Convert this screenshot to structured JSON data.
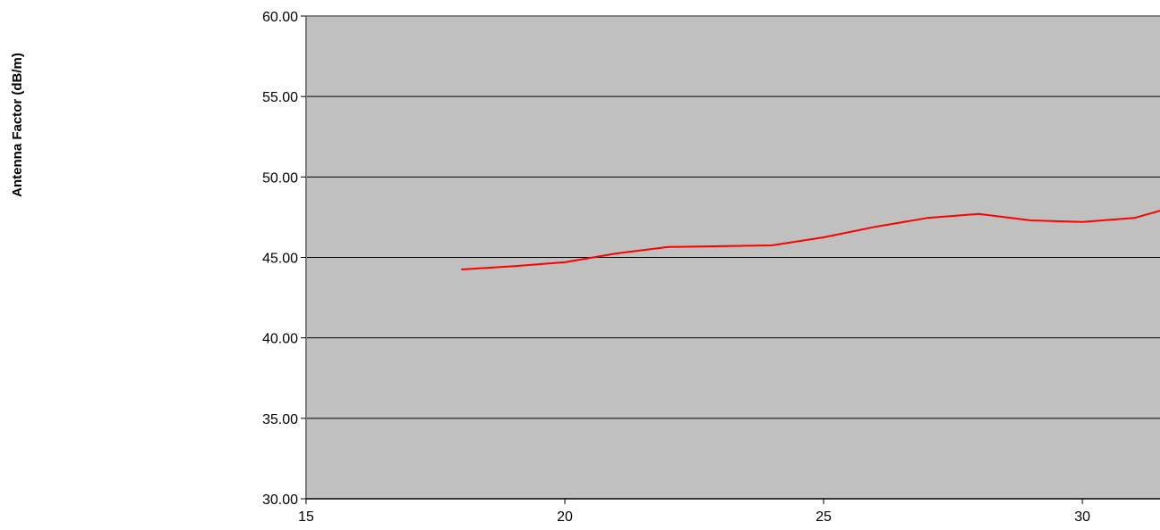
{
  "chart_data": {
    "type": "line",
    "title": "",
    "xlabel": "",
    "ylabel": "Antenna Factor (dB/m)",
    "xlim": [
      15,
      31.5
    ],
    "ylim": [
      30,
      60
    ],
    "x_ticks": [
      15,
      20,
      25,
      30
    ],
    "x_tick_labels": [
      "15",
      "20",
      "25",
      "30"
    ],
    "y_ticks": [
      30,
      35,
      40,
      45,
      50,
      55,
      60
    ],
    "y_tick_labels": [
      "30.00",
      "35.00",
      "40.00",
      "45.00",
      "50.00",
      "55.00",
      "60.00"
    ],
    "grid": "horizontal",
    "plot_background": "#c0c0c0",
    "series": [
      {
        "color": "#ff0000",
        "x": [
          18,
          19,
          20,
          21,
          22,
          23,
          24,
          25,
          26,
          27,
          28,
          29,
          30,
          31,
          31.5
        ],
        "y": [
          44.25,
          44.45,
          44.7,
          45.25,
          45.65,
          45.7,
          45.75,
          46.25,
          46.9,
          47.45,
          47.7,
          47.3,
          47.2,
          47.45,
          47.9
        ]
      }
    ]
  }
}
